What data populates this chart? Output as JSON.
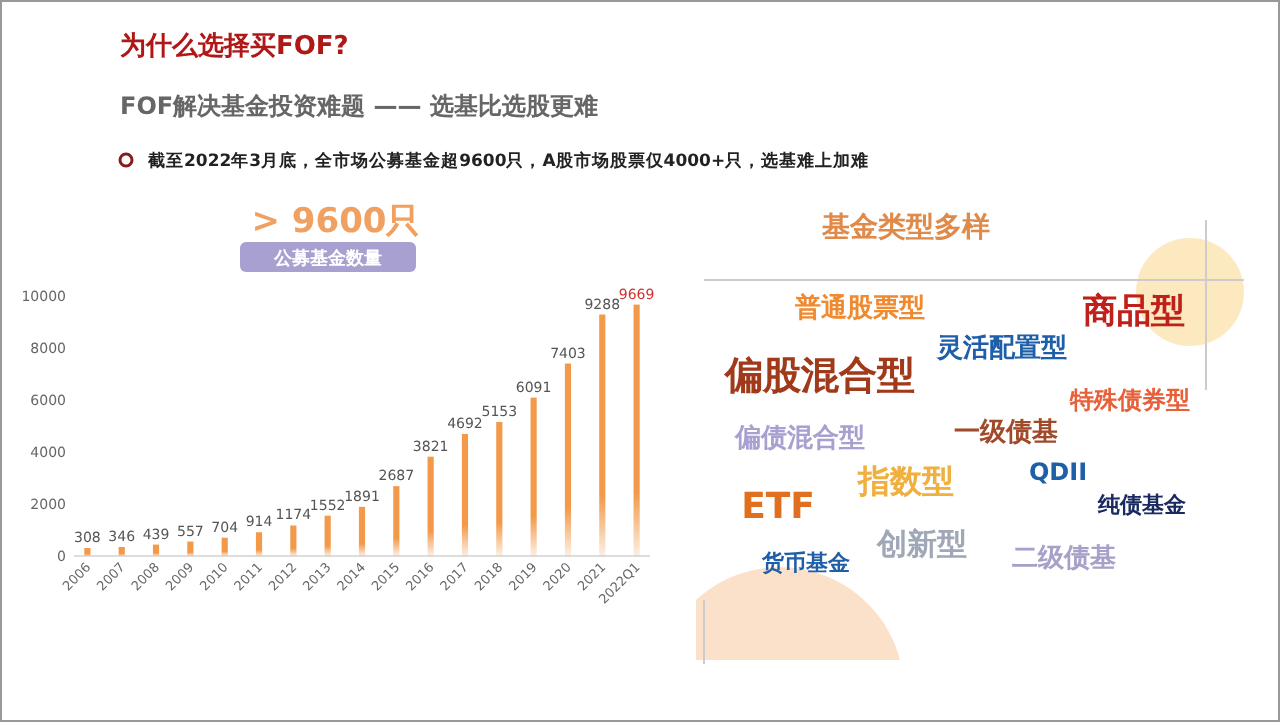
{
  "chart_data": {
    "type": "bar",
    "title": "为什么选择买FOF?",
    "subtitle": "FOF解决基金投资难题 —— 选基比选股更难",
    "categories": [
      "2006",
      "2007",
      "2008",
      "2009",
      "2010",
      "2011",
      "2012",
      "2013",
      "2014",
      "2015",
      "2016",
      "2017",
      "2018",
      "2019",
      "2020",
      "2021",
      "2022Q1"
    ],
    "values": [
      308,
      346,
      439,
      557,
      704,
      914,
      1174,
      1552,
      1891,
      2687,
      3821,
      4692,
      5153,
      6091,
      7403,
      9288,
      9669
    ],
    "color": "#f29a4a",
    "data_labels": true,
    "ylim": [
      0,
      10000
    ],
    "yticks": [
      0,
      2000,
      4000,
      6000,
      8000,
      10000
    ],
    "grid": false,
    "annotations": [
      "截至2022年3月底，全市场公募基金超9600只，A股市场股票仅4000+只，选基难上加难",
      "> 9600只",
      "公募基金数量",
      "基金类型多样",
      "普通股票型",
      "商品型",
      "灵活配置型",
      "偏股混合型",
      "特殊债券型",
      "偏债混合型",
      "一级债基",
      "指数型",
      "QDII",
      "ETF",
      "纯债基金",
      "创新型",
      "二级债基",
      "货币基金"
    ]
  }
}
